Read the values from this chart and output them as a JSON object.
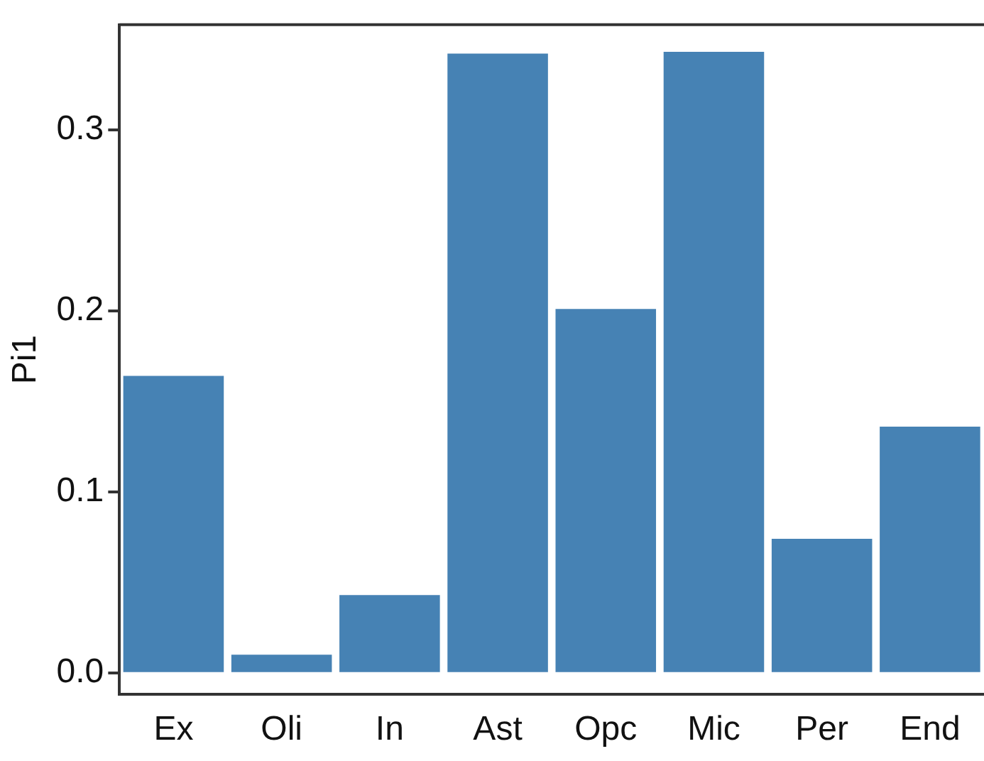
{
  "chart_data": {
    "type": "bar",
    "ylabel": "Pi1",
    "categories": [
      "Ex",
      "Oli",
      "In",
      "Ast",
      "Opc",
      "Mic",
      "Per",
      "End"
    ],
    "values": [
      0.164,
      0.01,
      0.043,
      0.342,
      0.201,
      0.343,
      0.074,
      0.136
    ],
    "color": "#4682b4",
    "ylim": [
      -0.012,
      0.358
    ],
    "yticks": [
      {
        "value": 0,
        "label": "0.0"
      },
      0.1,
      0.2,
      0.3
    ],
    "grid": false,
    "legend": false
  }
}
